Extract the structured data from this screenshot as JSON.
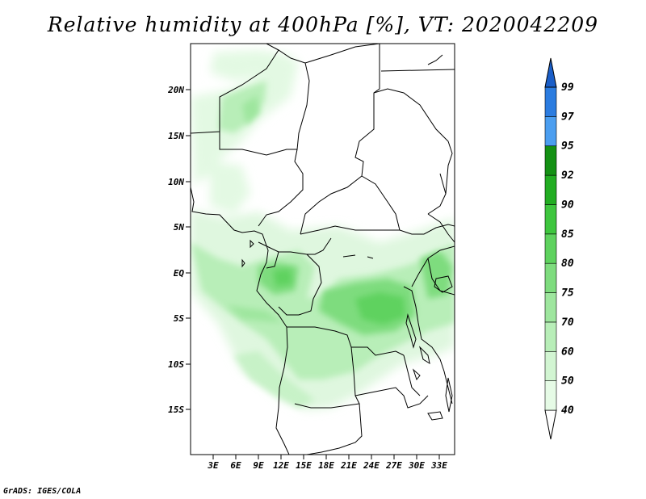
{
  "title": "Relative humidity at 400hPa [%], VT: 2020042209",
  "credit": "GrADS: IGES/COLA",
  "lat_labels": [
    "20N",
    "15N",
    "10N",
    "5N",
    "EQ",
    "5S",
    "10S",
    "15S"
  ],
  "lon_labels": [
    "3E",
    "6E",
    "9E",
    "12E",
    "15E",
    "18E",
    "21E",
    "24E",
    "27E",
    "30E",
    "33E"
  ],
  "colorbar": {
    "levels": [
      "40",
      "50",
      "60",
      "70",
      "75",
      "80",
      "85",
      "90",
      "92",
      "95",
      "97",
      "99"
    ],
    "colors": [
      "#ffffff",
      "#e6fbe6",
      "#d2f5d2",
      "#b8eeb8",
      "#9ee69e",
      "#7edc7e",
      "#5ed25e",
      "#3ec63e",
      "#22ad22",
      "#149114",
      "#4b9ef0",
      "#2b7ce0",
      "#1a5ec8"
    ]
  },
  "map": {
    "lon_range": [
      0,
      35.5
    ],
    "lat_range": [
      -20,
      24.5
    ],
    "features": [
      "coastlines",
      "country-borders"
    ],
    "field": "relative-humidity-400hPa"
  }
}
